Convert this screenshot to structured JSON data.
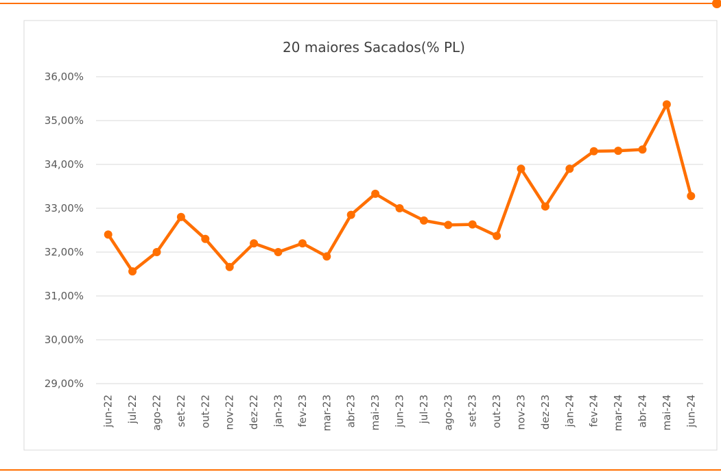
{
  "chart_data": {
    "type": "line",
    "title": "20 maiores Sacados(% PL)",
    "categories": [
      "jun-22",
      "jul-22",
      "ago-22",
      "set-22",
      "out-22",
      "nov-22",
      "dez-22",
      "jan-23",
      "fev-23",
      "mar-23",
      "abr-23",
      "mai-23",
      "jun-23",
      "jul-23",
      "ago-23",
      "set-23",
      "out-23",
      "nov-23",
      "dez-23",
      "jan-24",
      "fev-24",
      "mar-24",
      "abr-24",
      "mai-24",
      "jun-24"
    ],
    "series": [
      {
        "name": "20 maiores Sacados",
        "color": "#ff6f00",
        "values": [
          32.4,
          31.56,
          32.0,
          32.8,
          32.3,
          31.66,
          32.2,
          32.0,
          32.2,
          31.9,
          32.85,
          33.33,
          33.0,
          32.72,
          32.62,
          32.63,
          32.37,
          33.9,
          33.04,
          33.9,
          34.3,
          34.31,
          34.34,
          35.37,
          33.28
        ]
      }
    ],
    "ylim": [
      29,
      36
    ],
    "yticks": [
      {
        "value": 29,
        "label": "29,00%"
      },
      {
        "value": 30,
        "label": "30,00%"
      },
      {
        "value": 31,
        "label": "31,00%"
      },
      {
        "value": 32,
        "label": "32,00%"
      },
      {
        "value": 33,
        "label": "33,00%"
      },
      {
        "value": 34,
        "label": "34,00%"
      },
      {
        "value": 35,
        "label": "35,00%"
      },
      {
        "value": 36,
        "label": "36,00%"
      }
    ],
    "grid": true
  }
}
